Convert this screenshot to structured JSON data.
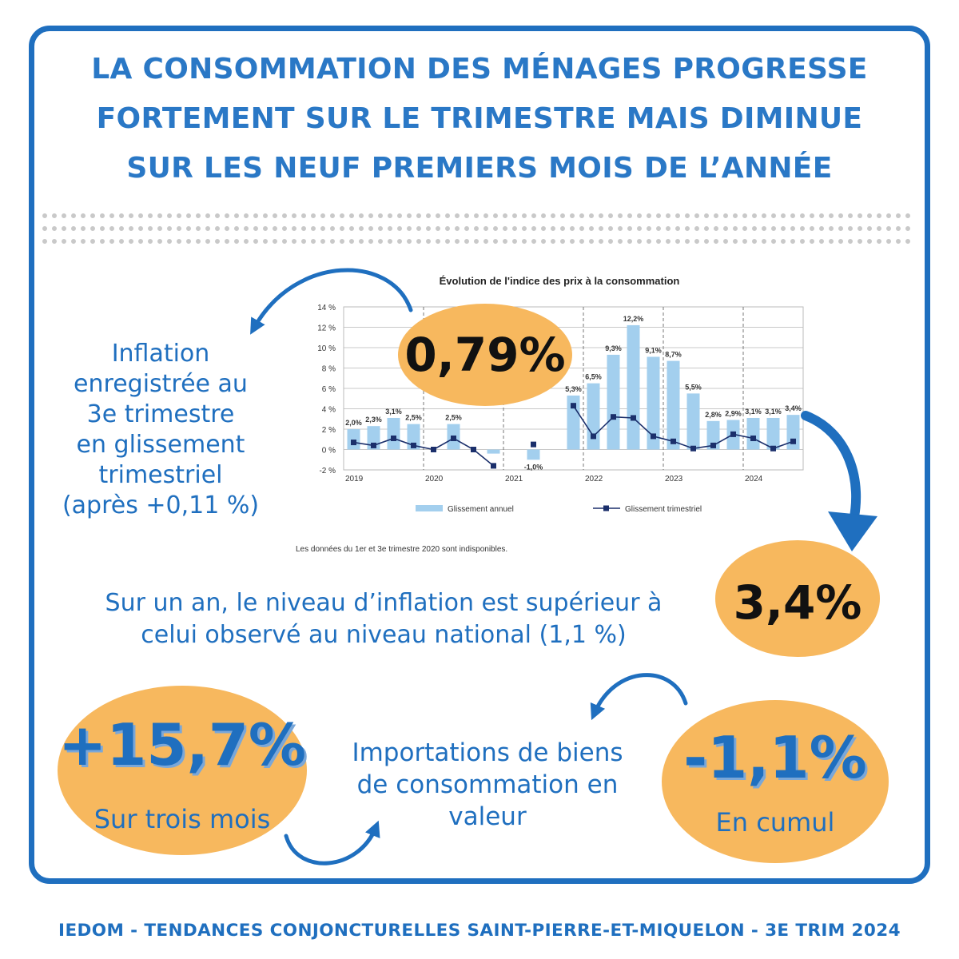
{
  "headline": [
    "LA CONSOMMATION DES MÉNAGES PROGRESSE",
    "FORTEMENT SUR LE TRIMESTRE MAIS DIMINUE",
    "SUR LES NEUF PREMIERS MOIS DE L’ANNÉE"
  ],
  "inflation_quarter": {
    "value": "0,79%",
    "text_lines": [
      "Inflation",
      "enregistrée au",
      "3e trimestre",
      "en glissement",
      "trimestriel",
      "(après +0,11 %)"
    ]
  },
  "inflation_year": {
    "value": "3,4%",
    "text_lines": [
      "Sur un an, le niveau d’inflation est supérieur à",
      "celui observé au niveau national (1,1 %)"
    ]
  },
  "imports": {
    "quarter_value": "+15,7%",
    "quarter_label": "Sur trois mois",
    "cumul_value": "-1,1%",
    "cumul_label": "En cumul",
    "text_lines": [
      "Importations de biens",
      "de consommation en",
      "valeur"
    ]
  },
  "footer": "IEDOM - TENDANCES CONJONCTURELLES SAINT-PIERRE-ET-MIQUELON - 3E TRIM 2024",
  "colors": {
    "brand_blue": "#1f6fbf",
    "bubble_orange": "#f7b85e",
    "bar_blue": "#a3cfee",
    "line_navy": "#1b2f6b"
  },
  "chart_data": {
    "type": "bar",
    "title": "Évolution de l'indice des prix à la consommation",
    "note": "Les données du 1er et 3e trimestre 2020 sont indisponibles.",
    "ylim": [
      -2,
      14
    ],
    "yticks": [
      "14 %",
      "12 %",
      "10 %",
      "8 %",
      "6 %",
      "4 %",
      "2 %",
      "0 %",
      "-2 %"
    ],
    "year_labels": [
      "2019",
      "2020",
      "2021",
      "2022",
      "2023",
      "2024"
    ],
    "grid": true,
    "legend_position": "bottom",
    "series": [
      {
        "name": "Glissement annuel",
        "kind": "bar",
        "values": [
          2.0,
          2.3,
          3.1,
          2.5,
          null,
          2.5,
          null,
          -0.4,
          null,
          -1.0,
          null,
          5.3,
          6.5,
          9.3,
          12.2,
          9.1,
          8.7,
          5.5,
          2.8,
          2.9,
          3.1,
          3.1,
          3.4
        ],
        "labels": [
          "2,0%",
          "2,3%",
          "3,1%",
          "2,5%",
          "",
          "2,5%",
          "",
          "",
          "",
          "-1,0%",
          "",
          "5,3%",
          "6,5%",
          "9,3%",
          "12,2%",
          "9,1%",
          "8,7%",
          "5,5%",
          "2,8%",
          "2,9%",
          "3,1%",
          "3,1%",
          "3,4%"
        ]
      },
      {
        "name": "Glissement trimestriel",
        "kind": "line",
        "values": [
          0.7,
          0.4,
          1.1,
          0.4,
          0.0,
          1.1,
          0.0,
          -1.6,
          null,
          0.5,
          null,
          4.3,
          1.3,
          3.2,
          3.1,
          1.3,
          0.8,
          0.1,
          0.4,
          1.5,
          1.1,
          0.1,
          0.8
        ]
      }
    ]
  }
}
